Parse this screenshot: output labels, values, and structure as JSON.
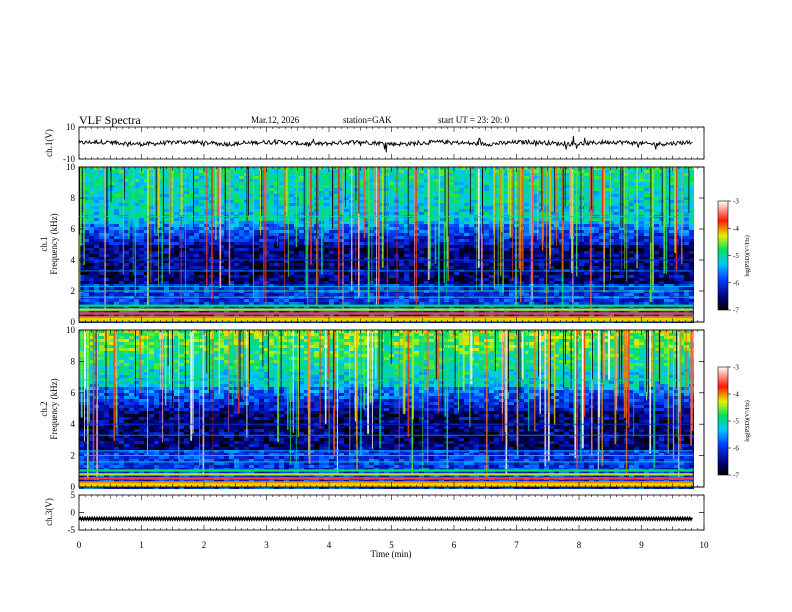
{
  "header": {
    "title": "VLF  Spectra",
    "date": "Mar.12, 2026",
    "station": "station=GAK",
    "start": "start  UT =    23: 20: 0"
  },
  "chart_data": [
    {
      "type": "line",
      "name": "ch1-waveform",
      "ylabel": "ch.1(V)",
      "ylim": [
        -10,
        10
      ],
      "yticks": [
        "10",
        "-10"
      ],
      "xlim": [
        0,
        10
      ],
      "trace_level_V": 0,
      "trace_extent_min": 9.82
    },
    {
      "type": "heatmap",
      "name": "ch1-spectrogram",
      "ylabel_line1": "ch.1",
      "ylabel_line2": "Frequency  (kHz)",
      "ylim": [
        0,
        10
      ],
      "yticks": [
        "0",
        "2",
        "4",
        "6",
        "8",
        "10"
      ],
      "colorbar": {
        "label": "log(PSD)(V²/Hz)",
        "range": [
          -7,
          -3
        ],
        "ticks": [
          "-3",
          "-4",
          "-5",
          "-6",
          "-7"
        ]
      }
    },
    {
      "type": "heatmap",
      "name": "ch2-spectrogram",
      "ylabel_line1": "ch.2",
      "ylabel_line2": "Frequency  (kHz)",
      "ylim": [
        0,
        10
      ],
      "yticks": [
        "0",
        "2",
        "4",
        "6",
        "8",
        "10"
      ],
      "colorbar": {
        "label": "log(PSD)(V²/Hz)",
        "range": [
          -7,
          -3
        ],
        "ticks": [
          "-3",
          "-4",
          "-5",
          "-6",
          "-7"
        ]
      }
    },
    {
      "type": "line",
      "name": "ch3-waveform",
      "ylabel": "ch.3(V)",
      "ylim": [
        -5,
        5
      ],
      "yticks": [
        "5",
        "0",
        "-5"
      ],
      "trace_level_V": -1.8
    }
  ],
  "xaxis": {
    "label": "Time  (min)",
    "range": [
      0,
      10
    ],
    "ticks": [
      "0",
      "1",
      "2",
      "3",
      "4",
      "5",
      "6",
      "7",
      "8",
      "9",
      "10"
    ]
  }
}
